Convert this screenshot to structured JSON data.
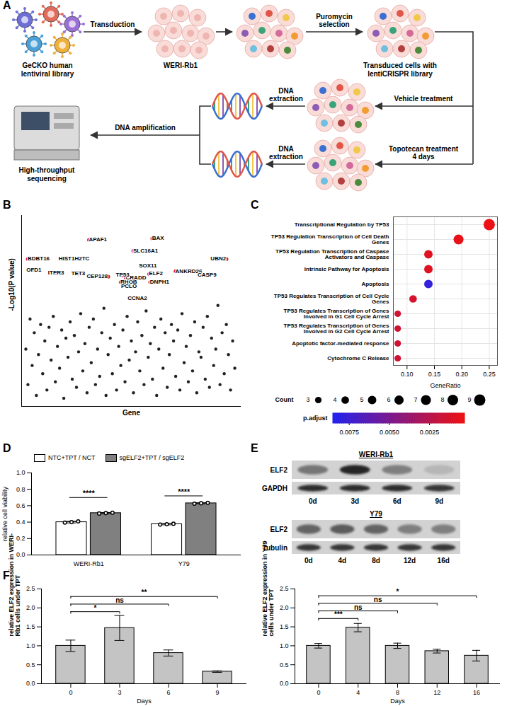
{
  "diagram": {
    "panel": "A",
    "nodes": [
      {
        "label": "GeCKO human lentiviral library"
      },
      {
        "label": "WERI-Rb1"
      },
      {
        "label": "Transduced cells with lentiCRISPR library"
      },
      {
        "label": "High-throughput sequencing"
      }
    ],
    "arrows": [
      {
        "label": "Transduction"
      },
      {
        "label": "Puromycin selection"
      },
      {
        "label": "Vehicle treatment"
      },
      {
        "label": "Topotecan treatment 4 days"
      },
      {
        "label": "DNA extraction"
      },
      {
        "label": "DNA extraction"
      },
      {
        "label": "DNA amplification"
      }
    ]
  },
  "chart_data": [
    {
      "panel": "B",
      "type": "scatter",
      "x_label": "Gene",
      "y_label": "-Log10(P value)",
      "xlim": [
        -2,
        102
      ],
      "ylim": [
        0,
        7
      ],
      "tick_labels": false,
      "series": [
        {
          "color": "#222222",
          "x": [
            0,
            1,
            2,
            3,
            4,
            5,
            6,
            7,
            8,
            9,
            10,
            11,
            12,
            13,
            14,
            15,
            16,
            17,
            18,
            19,
            20,
            21,
            22,
            23,
            24,
            25,
            26,
            27,
            28,
            29,
            30,
            31,
            32,
            33,
            34,
            35,
            36,
            37,
            38,
            39,
            40,
            41,
            42,
            43,
            44,
            45,
            46,
            47,
            48,
            49,
            50,
            51,
            52,
            53,
            54,
            55,
            56,
            57,
            58,
            59,
            60,
            61,
            62,
            63,
            64,
            65,
            66,
            67,
            68,
            69,
            70,
            71,
            72,
            73,
            74,
            75,
            76,
            77,
            78,
            79,
            80,
            81,
            82,
            83,
            84,
            85,
            86,
            87,
            88,
            89,
            90,
            91,
            92,
            93,
            94,
            95,
            96,
            97,
            98,
            99
          ],
          "values": [
            2.1,
            0.8,
            3.2,
            1.5,
            2.7,
            0.4,
            1.9,
            3.0,
            1.2,
            2.4,
            0.6,
            2.9,
            1.7,
            3.3,
            0.9,
            2.2,
            1.4,
            2.8,
            0.3,
            2.5,
            1.8,
            3.1,
            1.0,
            2.6,
            0.7,
            2.0,
            3.4,
            1.3,
            2.3,
            0.5,
            2.9,
            1.6,
            3.2,
            0.8,
            2.1,
            1.1,
            2.7,
            3.6,
            0.4,
            1.9,
            2.5,
            1.2,
            3.0,
            0.6,
            2.2,
            1.5,
            2.8,
            0.9,
            3.3,
            1.7,
            2.4,
            0.5,
            2.0,
            3.1,
            1.3,
            2.6,
            0.8,
            3.5,
            1.8,
            2.3,
            1.0,
            2.9,
            0.4,
            2.1,
            3.2,
            1.4,
            2.7,
            0.7,
            1.9,
            3.0,
            2.4,
            1.1,
            2.8,
            0.6,
            3.4,
            1.6,
            2.2,
            0.9,
            2.6,
            1.3,
            3.1,
            0.5,
            2.0,
            1.8,
            2.9,
            1.0,
            3.3,
            0.7,
            2.5,
            1.5,
            2.1,
            3.7,
            0.8,
            2.7,
            1.2,
            3.0,
            1.9,
            0.6,
            2.4,
            1.4
          ]
        },
        {
          "color": "#e8132b",
          "labels": [
            "BDBT16",
            "OFD1",
            "ITPR3",
            "HIST1H2TC",
            "TET3",
            "APAF1",
            "CEP128",
            "TP53",
            "RHOB",
            "CRADD",
            "PCLO",
            "CCNA2",
            "SLC16A1",
            "BAX",
            "SOX11",
            "ELF2",
            "DNPH1",
            "ANKRD26",
            "CASP9",
            "UBN2"
          ],
          "x": [
            1,
            4,
            14.5,
            23,
            25,
            30,
            39,
            46,
            45,
            47.5,
            49,
            53,
            51,
            60,
            58,
            58.5,
            59,
            71,
            86,
            95
          ],
          "values": [
            5.4,
            5.0,
            4.9,
            5.4,
            4.85,
            6.1,
            4.75,
            4.8,
            4.55,
            4.7,
            4.4,
            3.95,
            5.7,
            6.15,
            5.15,
            4.85,
            4.55,
            4.95,
            4.8,
            5.4
          ]
        }
      ]
    },
    {
      "panel": "C",
      "type": "dot",
      "x_label": "GeneRatio",
      "grid": true,
      "categories": [
        "Transcriptional Regulation by TP53",
        "TP53 Regulation Transcription of Cell Death Genes",
        "TP53 Regulation Transcription of Caspase Activators and Caspase",
        "Intrinsic Pathway for Apoptosis",
        "Apoptosis",
        "TP53 Regulates Transcription of Cell Cycle Genes",
        "TP53 Regulates Transcription of Genes Involved in G1 Cell Cycle Arrest",
        "TP53 Regulates Transcription of Genes Involved in G2 Cell Cycle Arrest",
        "Apoptotic factor-mediated response",
        "Cytochrome C Release"
      ],
      "values": [
        0.25,
        0.194,
        0.139,
        0.139,
        0.139,
        0.111,
        0.083,
        0.083,
        0.083,
        0.083
      ],
      "counts": [
        9,
        7,
        5,
        5,
        5,
        4,
        3,
        3,
        3,
        3
      ],
      "p_adjust": [
        0.0004,
        0.0006,
        0.0009,
        0.0009,
        0.0078,
        0.0013,
        0.0016,
        0.0016,
        0.0016,
        0.0016
      ],
      "xlim": [
        0.075,
        0.265
      ],
      "xticks": [
        {
          "value": 0.1,
          "label": "0.10"
        },
        {
          "value": 0.15,
          "label": "0.15"
        },
        {
          "value": 0.2,
          "label": "0.20"
        },
        {
          "value": 0.25,
          "label": "0.25"
        }
      ],
      "size_legend": {
        "title": "Count",
        "values": [
          3,
          4,
          5,
          6,
          7,
          8,
          9
        ]
      },
      "color_bar": {
        "title": "p.adjust",
        "range": [
          0.0003,
          0.0085
        ],
        "colors": [
          "#ee1111",
          "#2222ee"
        ],
        "ticks": [
          0.0075,
          {
            "value": 0.005,
            "label": "0.0050"
          },
          0.0025
        ]
      }
    },
    {
      "panel": "D",
      "type": "bar",
      "y_label": "relative cell viability",
      "legend": "top",
      "categories": [
        "WERI-Rb1",
        "Y79"
      ],
      "ylim": [
        0,
        1.0
      ],
      "yticks": [
        {
          "value": 0,
          "label": "0.0"
        },
        0.2,
        0.4,
        0.6,
        0.8,
        {
          "value": 1.0,
          "label": "1.0"
        }
      ],
      "series": [
        {
          "name": "NTC+TPT / NCT",
          "color": "#ffffff",
          "values": [
            0.4,
            0.375
          ],
          "errors": [
            0.01,
            0.008
          ],
          "replicates": [
            [
              0.395,
              0.4,
              0.41
            ],
            [
              0.37,
              0.375,
              0.38
            ]
          ]
        },
        {
          "name": "sgELF2+TPT / sgELF2",
          "color": "#808080",
          "values": [
            0.51,
            0.63
          ],
          "errors": [
            0.008,
            0.006
          ],
          "replicates": [
            [
              0.505,
              0.51,
              0.515
            ],
            [
              0.625,
              0.63,
              0.635
            ]
          ]
        }
      ],
      "annotations": [
        {
          "category": "WERI-Rb1",
          "label": "****",
          "y": 0.7
        },
        {
          "category": "Y79",
          "label": "****",
          "y": 0.72
        }
      ]
    },
    {
      "panel": "F",
      "type": "bar",
      "x_label": "Days",
      "y_label": "relative ELF2 expression in WERI-Rb1 cells under TPT",
      "categories": [
        "0",
        "3",
        "6",
        "9"
      ],
      "values": [
        1.0,
        1.47,
        0.81,
        0.32
      ],
      "errors": [
        0.15,
        0.33,
        0.08,
        0.02
      ],
      "color": "#c4c4c4",
      "ylim": [
        0,
        2.5
      ],
      "yticks": [
        {
          "value": 0,
          "label": "0.0"
        },
        0.5,
        {
          "value": 1.0,
          "label": "1.0"
        },
        1.5,
        {
          "value": 2.0,
          "label": "2.0"
        },
        2.5
      ],
      "annotations": [
        {
          "from": "0",
          "to": "3",
          "label": "*",
          "y": 1.9
        },
        {
          "from": "0",
          "to": "6",
          "label": "ns",
          "y": 2.1
        },
        {
          "from": "0",
          "to": "9",
          "label": "**",
          "y": 2.3
        }
      ]
    },
    {
      "type": "bar",
      "x_label": "Days",
      "y_label": "relative ELF2 expression in Y79 cells under TPT",
      "categories": [
        "0",
        "4",
        "8",
        "12",
        "16"
      ],
      "values": [
        1.0,
        1.48,
        1.0,
        0.86,
        0.74
      ],
      "errors": [
        0.06,
        0.11,
        0.07,
        0.05,
        0.14
      ],
      "color": "#c4c4c4",
      "ylim": [
        0,
        2.5
      ],
      "yticks": [
        {
          "value": 0,
          "label": "0.0"
        },
        0.5,
        {
          "value": 1.0,
          "label": "1.0"
        },
        1.5,
        {
          "value": 2.0,
          "label": "2.0"
        },
        2.5
      ],
      "annotations": [
        {
          "from": "0",
          "to": "4",
          "label": "***",
          "y": 1.72
        },
        {
          "from": "0",
          "to": "8",
          "label": "ns",
          "y": 1.92
        },
        {
          "from": "0",
          "to": "12",
          "label": "ns",
          "y": 2.12
        },
        {
          "from": "0",
          "to": "16",
          "label": "*",
          "y": 2.32
        }
      ]
    }
  ],
  "blots": {
    "panel": "E",
    "groups": [
      {
        "title": "WERI-Rb1",
        "lanes": [
          "0d",
          "3d",
          "6d",
          "9d"
        ],
        "rows": [
          {
            "protein": "ELF2",
            "intensity": [
              0.5,
              0.95,
              0.45,
              0.15
            ]
          },
          {
            "protein": "GAPDH",
            "intensity": [
              0.9,
              0.9,
              0.9,
              0.85
            ]
          }
        ]
      },
      {
        "title": "Y79",
        "lanes": [
          "0d",
          "4d",
          "8d",
          "12d",
          "16d"
        ],
        "rows": [
          {
            "protein": "ELF2",
            "intensity": [
              0.6,
              0.65,
              0.6,
              0.45,
              0.45
            ]
          },
          {
            "protein": "Tubulin",
            "intensity": [
              0.85,
              0.85,
              0.85,
              0.85,
              0.85
            ]
          }
        ]
      }
    ]
  }
}
